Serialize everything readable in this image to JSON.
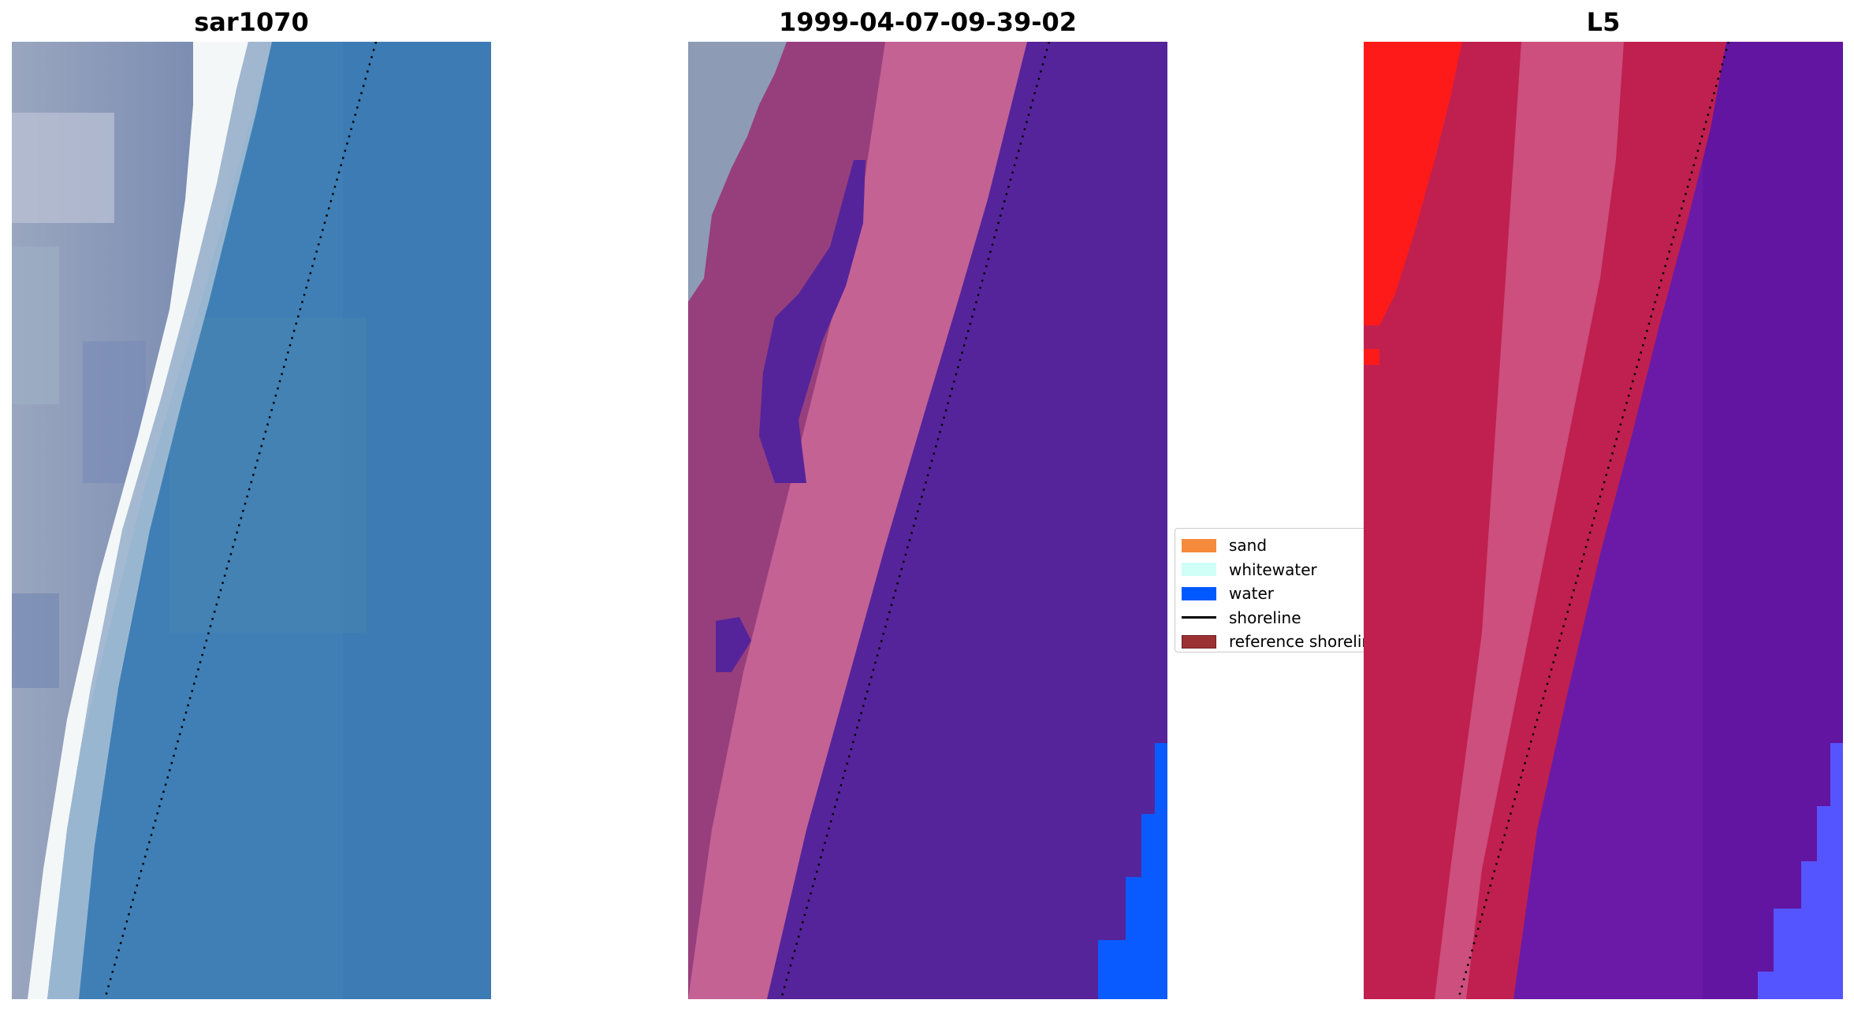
{
  "panels": [
    {
      "title": "sar1070"
    },
    {
      "title": "1999-04-07-09-39-02"
    },
    {
      "title": "L5"
    }
  ],
  "legend": {
    "items": [
      {
        "label": "sand",
        "type": "patch",
        "color": "#f58a3c"
      },
      {
        "label": "whitewater",
        "type": "patch",
        "color": "#cffff7"
      },
      {
        "label": "water",
        "type": "patch",
        "color": "#0059ff"
      },
      {
        "label": "shoreline",
        "type": "line",
        "color": "#000000"
      },
      {
        "label": "reference shoreline",
        "type": "patch",
        "color": "#9b3133",
        "edge": "#6e1f22"
      }
    ]
  },
  "colors": {
    "rgb_water": "#3f7fb5",
    "rgb_beach_gray": "#8c99b8",
    "rgb_whitewater": "#f4f7f8",
    "class_land_pink": "#c46294",
    "class_land_dark": "#8f3a78",
    "class_water_purple": "#55249a",
    "class_water_blue": "#0a5bff",
    "class_gray": "#8e9bb4",
    "index_red": "#ff1a1a",
    "index_crimson": "#c0204f",
    "index_pink": "#d4709c",
    "index_purple": "#6a1aa6",
    "index_blue": "#5555ff"
  }
}
